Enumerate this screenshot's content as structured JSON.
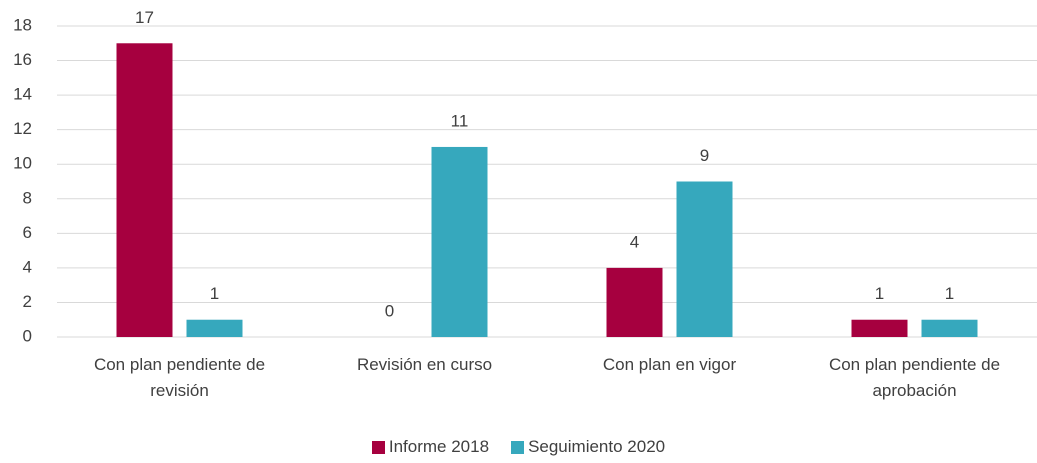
{
  "chart_data": {
    "type": "bar",
    "categories": [
      "Con plan pendiente de revisión",
      "Revisión en curso",
      "Con plan en vigor",
      "Con plan pendiente de aprobación"
    ],
    "series": [
      {
        "name": "Informe 2018",
        "color": "#a6003f",
        "values": [
          17,
          0,
          4,
          1
        ]
      },
      {
        "name": "Seguimiento 2020",
        "color": "#36a8bd",
        "values": [
          1,
          11,
          9,
          1
        ]
      }
    ],
    "ylim": [
      0,
      18
    ],
    "yticks": [
      0,
      2,
      4,
      6,
      8,
      10,
      12,
      14,
      16,
      18
    ],
    "grid": true,
    "legend": "bottom"
  }
}
